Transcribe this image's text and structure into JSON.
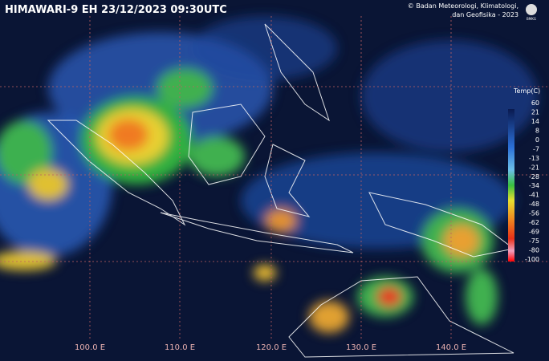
{
  "header": {
    "title": "HIMAWARI-9 EH 23/12/2023 09:30UTC",
    "credit": [
      "© Badan Meteorologi, Klimatologi,",
      "dan Geofisika -  2023"
    ],
    "logo": "BMKG"
  },
  "legend": {
    "title": "Temp(C)",
    "ticks": [
      "60",
      "21",
      "14",
      "8",
      "0",
      "-7",
      "-13",
      "-21",
      "-28",
      "-34",
      "-41",
      "-48",
      "-56",
      "-62",
      "-69",
      "-75",
      "-80",
      "-100"
    ]
  },
  "longitudes": [
    "100.0 E",
    "110.0 E",
    "120.0 E",
    "130.0 E",
    "140.0 E"
  ]
}
